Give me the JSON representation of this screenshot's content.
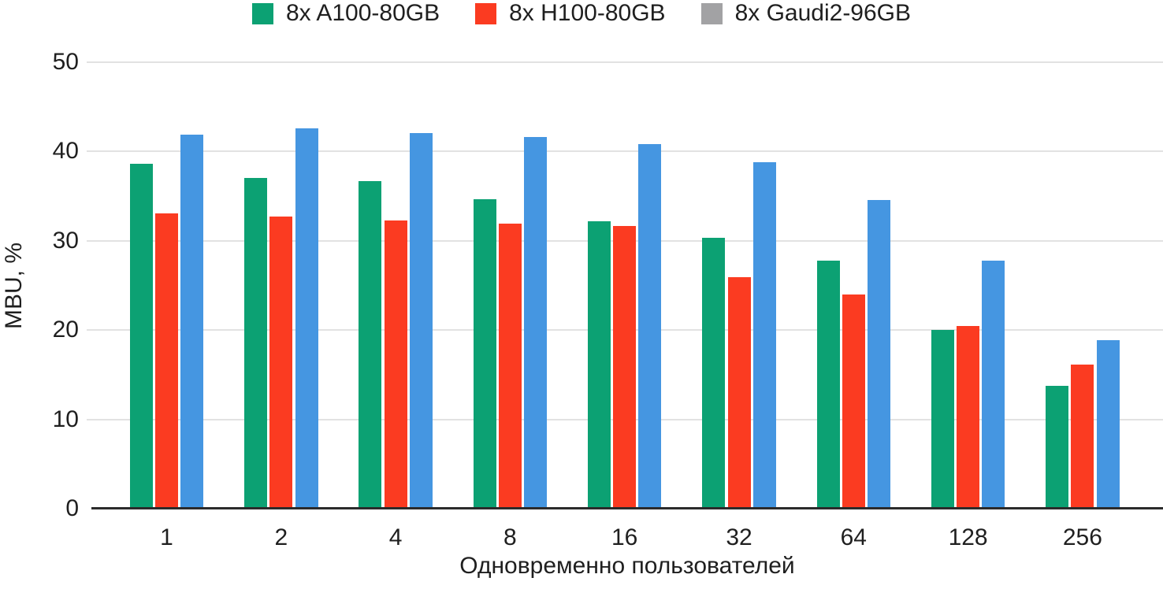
{
  "chart_data": {
    "type": "bar",
    "title": "",
    "xlabel": "Одновременно пользователей",
    "ylabel": "MBU, %",
    "categories": [
      "1",
      "2",
      "4",
      "8",
      "16",
      "32",
      "64",
      "128",
      "256"
    ],
    "series": [
      {
        "name": "8x A100-80GB",
        "bar_color": "#0ca173",
        "legend_swatch_color": "#0ca173",
        "values": [
          38.6,
          37.0,
          36.7,
          34.7,
          32.2,
          30.3,
          27.8,
          20.0,
          13.8
        ]
      },
      {
        "name": "8x H100-80GB",
        "bar_color": "#fb3b21",
        "legend_swatch_color": "#fb3b21",
        "values": [
          33.1,
          32.7,
          32.3,
          31.9,
          31.7,
          25.9,
          24.0,
          20.5,
          16.1
        ]
      },
      {
        "name": "8x Gaudi2-96GB",
        "bar_color": "#4596e1",
        "legend_swatch_color": "#a2a2a4",
        "values": [
          41.9,
          42.6,
          42.1,
          41.6,
          40.8,
          38.8,
          34.6,
          27.8,
          18.9
        ]
      }
    ],
    "ylim": [
      0,
      50
    ],
    "yticks": [
      0,
      10,
      20,
      30,
      40,
      50
    ],
    "grid": true,
    "legend_position": "top-center"
  },
  "colors": {
    "background": "#ffffff",
    "gridline": "#e2e2e2",
    "axis_line": "#2b2b2b",
    "text": "#1f1f1f"
  }
}
